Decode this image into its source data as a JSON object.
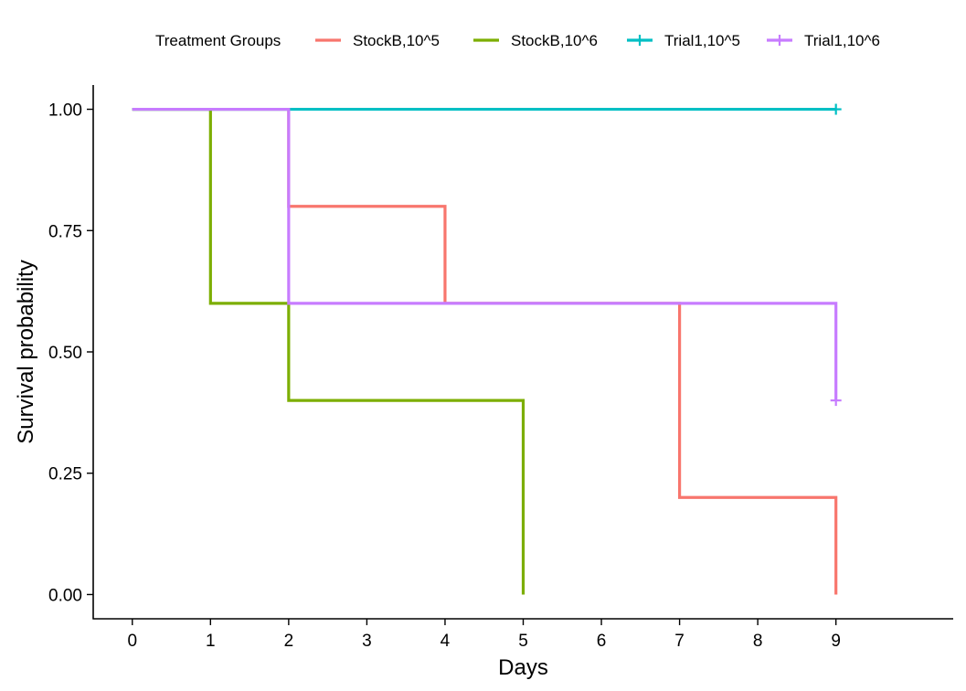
{
  "chart_data": {
    "type": "line",
    "subtype": "survival-step",
    "xlabel": "Days",
    "ylabel": "Survival probability",
    "xlim": [
      -0.5,
      10.5
    ],
    "ylim": [
      -0.05,
      1.05
    ],
    "x_ticks": [
      0,
      1,
      2,
      3,
      4,
      5,
      6,
      7,
      8,
      9
    ],
    "y_ticks": [
      0,
      0.25,
      0.5,
      0.75,
      1
    ],
    "y_tick_labels": [
      "0.00",
      "0.25",
      "0.50",
      "0.75",
      "1.00"
    ],
    "grid": false,
    "legend": {
      "title": "Treatment Groups",
      "position": "top"
    },
    "series": [
      {
        "name": "StockB,10^5",
        "color": "#F8766D",
        "points": [
          [
            0,
            1
          ],
          [
            2,
            1
          ],
          [
            2,
            0.8
          ],
          [
            4,
            0.8
          ],
          [
            4,
            0.6
          ],
          [
            7,
            0.6
          ],
          [
            7,
            0.2
          ],
          [
            9,
            0.2
          ],
          [
            9,
            0
          ]
        ],
        "censored": []
      },
      {
        "name": "StockB,10^6",
        "color": "#7CAE00",
        "points": [
          [
            0,
            1
          ],
          [
            1,
            1
          ],
          [
            1,
            0.6
          ],
          [
            2,
            0.6
          ],
          [
            2,
            0.4
          ],
          [
            5,
            0.4
          ],
          [
            5,
            0
          ]
        ],
        "censored": []
      },
      {
        "name": "Trial1,10^5",
        "color": "#00BFC4",
        "points": [
          [
            0,
            1
          ],
          [
            9,
            1
          ]
        ],
        "censored": [
          [
            9,
            1
          ]
        ]
      },
      {
        "name": "Trial1,10^6",
        "color": "#C77CFF",
        "points": [
          [
            0,
            1
          ],
          [
            2,
            1
          ],
          [
            2,
            0.6
          ],
          [
            9,
            0.6
          ],
          [
            9,
            0.4
          ]
        ],
        "censored": [
          [
            9,
            0.4
          ]
        ]
      }
    ]
  }
}
